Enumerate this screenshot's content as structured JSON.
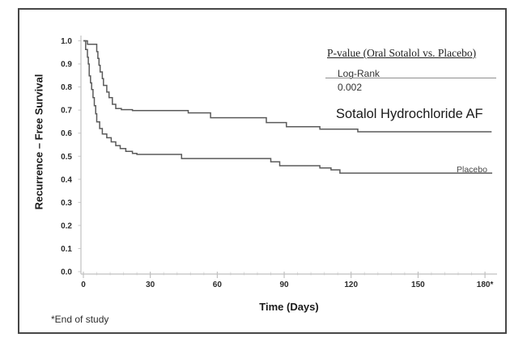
{
  "chart_data": {
    "type": "line",
    "variant": "kaplan_meier_step_survival",
    "title": "",
    "xlabel": "Time (Days)",
    "ylabel": "Recurrence – Free Survival",
    "xlim": [
      0,
      186
    ],
    "ylim": [
      0.0,
      1.0
    ],
    "grid": false,
    "legend_position": "labels_on_plot",
    "curve_color": "#5a5a5a",
    "x_ticks": [
      {
        "value": 0,
        "label": "0"
      },
      {
        "value": 30,
        "label": "30"
      },
      {
        "value": 60,
        "label": "60"
      },
      {
        "value": 90,
        "label": "90"
      },
      {
        "value": 120,
        "label": "120"
      },
      {
        "value": 150,
        "label": "150"
      },
      {
        "value": 180,
        "label": "180*"
      }
    ],
    "y_ticks": [
      {
        "value": 1.0,
        "label": "1.0"
      },
      {
        "value": 0.9,
        "label": "0.9"
      },
      {
        "value": 0.8,
        "label": "0.8"
      },
      {
        "value": 0.7,
        "label": "0.7"
      },
      {
        "value": 0.6,
        "label": "0.6"
      },
      {
        "value": 0.5,
        "label": "0.5"
      },
      {
        "value": 0.4,
        "label": "0.4"
      },
      {
        "value": 0.3,
        "label": "0.3"
      },
      {
        "value": 0.2,
        "label": "0.2"
      },
      {
        "value": 0.1,
        "label": "0.1"
      },
      {
        "value": 0.0,
        "label": "0.0"
      }
    ],
    "pvalue_box": {
      "title": "P-value (Oral Sotalol vs. Placebo)",
      "test_label": "Log-Rank",
      "test_value": "0.002"
    },
    "footnote": "*End of study",
    "series": [
      {
        "name": "Sotalol Hydrochloride AF",
        "final_value": 0.61,
        "points": [
          [
            0,
            1.0
          ],
          [
            1.8,
            0.985
          ],
          [
            6,
            0.953
          ],
          [
            6.5,
            0.924
          ],
          [
            7,
            0.894
          ],
          [
            7.5,
            0.865
          ],
          [
            8.5,
            0.836
          ],
          [
            9,
            0.807
          ],
          [
            10.5,
            0.778
          ],
          [
            11.5,
            0.754
          ],
          [
            13,
            0.725
          ],
          [
            14.5,
            0.707
          ],
          [
            17,
            0.702
          ],
          [
            22,
            0.698
          ],
          [
            47,
            0.688
          ],
          [
            57,
            0.667
          ],
          [
            82,
            0.646
          ],
          [
            91,
            0.628
          ],
          [
            106,
            0.617
          ],
          [
            123,
            0.606
          ],
          [
            183,
            0.606
          ]
        ]
      },
      {
        "name": "Placebo",
        "final_value": 0.42,
        "points": [
          [
            0,
            1.0
          ],
          [
            1,
            0.962
          ],
          [
            1.8,
            0.929
          ],
          [
            2.2,
            0.9
          ],
          [
            2.6,
            0.848
          ],
          [
            3.2,
            0.818
          ],
          [
            3.7,
            0.789
          ],
          [
            4.3,
            0.754
          ],
          [
            4.9,
            0.719
          ],
          [
            5.5,
            0.684
          ],
          [
            6,
            0.649
          ],
          [
            7.3,
            0.62
          ],
          [
            8.5,
            0.596
          ],
          [
            10.5,
            0.58
          ],
          [
            12.5,
            0.562
          ],
          [
            14.5,
            0.546
          ],
          [
            16.5,
            0.533
          ],
          [
            19,
            0.521
          ],
          [
            22,
            0.512
          ],
          [
            24,
            0.508
          ],
          [
            44,
            0.49
          ],
          [
            84,
            0.476
          ],
          [
            88,
            0.459
          ],
          [
            106,
            0.449
          ],
          [
            111,
            0.441
          ],
          [
            115,
            0.427
          ],
          [
            183,
            0.424
          ]
        ]
      }
    ]
  }
}
